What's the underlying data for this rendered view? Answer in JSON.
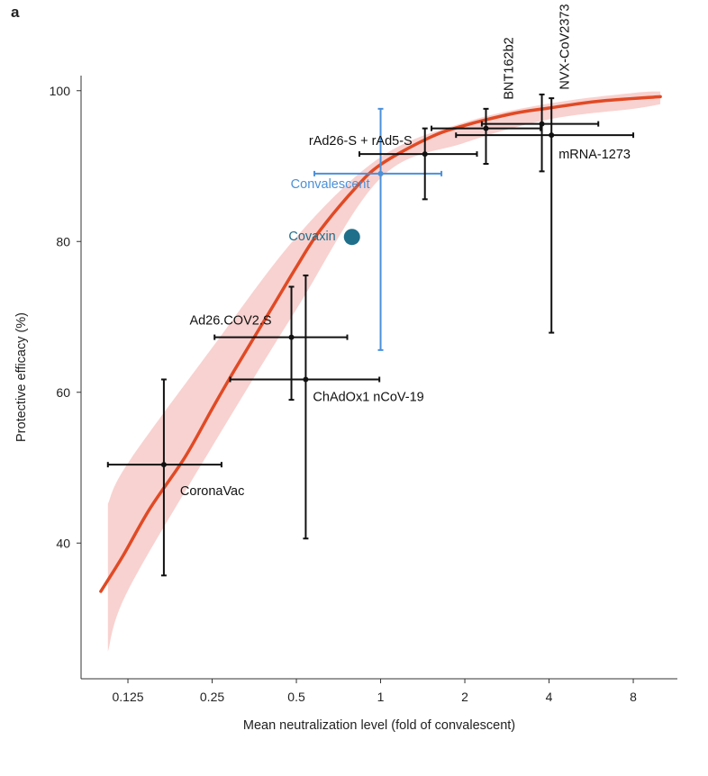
{
  "panel_label": "a",
  "chart_data": {
    "type": "scatter",
    "title": "",
    "xlabel": "Mean neutralization level (fold of convalescent)",
    "ylabel": "Protective efficacy (%)",
    "x_scale": "log2",
    "xlim": [
      0.085,
      11.5
    ],
    "ylim": [
      22,
      102
    ],
    "x_ticks": [
      {
        "value": 0.125,
        "label": "0.125"
      },
      {
        "value": 0.25,
        "label": "0.25"
      },
      {
        "value": 0.5,
        "label": "0.5"
      },
      {
        "value": 1,
        "label": "1"
      },
      {
        "value": 2,
        "label": "2"
      },
      {
        "value": 4,
        "label": "4"
      },
      {
        "value": 8,
        "label": "8"
      }
    ],
    "y_ticks": [
      {
        "value": 40,
        "label": "40"
      },
      {
        "value": 60,
        "label": "60"
      },
      {
        "value": 80,
        "label": "80"
      },
      {
        "value": 100,
        "label": "100"
      }
    ],
    "grid": false,
    "legend": "none",
    "colors": {
      "points": "#111111",
      "convalescent": "#4a90d9",
      "covaxin": "#1f6f8b",
      "fit": "#e04a25",
      "band": "#f6c3c0"
    },
    "points": [
      {
        "name": "CoronaVac",
        "x": 0.168,
        "y": 50.4,
        "x_lo": 0.106,
        "x_hi": 0.27,
        "y_lo": 35.7,
        "y_hi": 61.7,
        "color": "#111111",
        "label_pos": "right-below",
        "label_rotated": false
      },
      {
        "name": "Ad26.COV2.S",
        "x": 0.48,
        "y": 67.3,
        "x_lo": 0.255,
        "x_hi": 0.76,
        "y_lo": 59.0,
        "y_hi": 74.0,
        "color": "#111111",
        "label_pos": "left-above",
        "label_rotated": false
      },
      {
        "name": "ChAdOx1 nCoV-19",
        "x": 0.54,
        "y": 61.7,
        "x_lo": 0.29,
        "x_hi": 0.99,
        "y_lo": 40.6,
        "y_hi": 75.5,
        "color": "#111111",
        "label_pos": "right-below",
        "label_rotated": false
      },
      {
        "name": "Convalescent",
        "x": 1.0,
        "y": 89.0,
        "x_lo": 0.58,
        "x_hi": 1.65,
        "y_lo": 65.6,
        "y_hi": 97.6,
        "color": "#4a90d9",
        "label_pos": "left",
        "label_rotated": false
      },
      {
        "name": "Covaxin",
        "x": 0.79,
        "y": 80.6,
        "color": "#1f6f8b",
        "label_pos": "left",
        "label_rotated": false
      },
      {
        "name": "rAd26-S + rAd5-S",
        "x": 1.44,
        "y": 91.6,
        "x_lo": 0.84,
        "x_hi": 2.21,
        "y_lo": 85.6,
        "y_hi": 95.0,
        "color": "#111111",
        "label_pos": "left-above",
        "label_rotated": false
      },
      {
        "name": "BNT162b2",
        "x": 2.38,
        "y": 95.0,
        "x_lo": 1.52,
        "x_hi": 3.73,
        "y_lo": 90.3,
        "y_hi": 97.6,
        "color": "#111111",
        "label_pos": "above",
        "label_rotated": true
      },
      {
        "name": "NVX-CoV2373",
        "x": 3.77,
        "y": 95.6,
        "x_lo": 2.3,
        "x_hi": 6.0,
        "y_lo": 89.3,
        "y_hi": 99.5,
        "color": "#111111",
        "label_pos": "above",
        "label_rotated": true
      },
      {
        "name": "mRNA-1273",
        "x": 4.08,
        "y": 94.1,
        "x_lo": 1.86,
        "x_hi": 8.0,
        "y_lo": 67.9,
        "y_hi": 99.0,
        "color": "#111111",
        "label_pos": "right-below",
        "label_rotated": false
      }
    ],
    "fit_curve": {
      "name": "",
      "points": [
        [
          0.1,
          33.6
        ],
        [
          0.12,
          38.3
        ],
        [
          0.15,
          44.6
        ],
        [
          0.2,
          51.4
        ],
        [
          0.25,
          57.8
        ],
        [
          0.3,
          62.9
        ],
        [
          0.4,
          70.6
        ],
        [
          0.5,
          76.6
        ],
        [
          0.6,
          81.2
        ],
        [
          0.8,
          86.8
        ],
        [
          1.0,
          90.2
        ],
        [
          1.5,
          93.8
        ],
        [
          2.0,
          95.4
        ],
        [
          3.0,
          97.0
        ],
        [
          4.0,
          97.7
        ],
        [
          6.0,
          98.6
        ],
        [
          10.0,
          99.2
        ]
      ]
    },
    "confidence_band": {
      "upper": [
        [
          0.106,
          45.2
        ],
        [
          0.125,
          50.6
        ],
        [
          0.25,
          65.9
        ],
        [
          0.5,
          80.6
        ],
        [
          1.0,
          91.2
        ],
        [
          2.0,
          95.8
        ],
        [
          4.0,
          98.3
        ],
        [
          8.0,
          99.7
        ],
        [
          10.0,
          99.9
        ]
      ],
      "lower": [
        [
          0.106,
          25.6
        ],
        [
          0.125,
          33.7
        ],
        [
          0.25,
          52.8
        ],
        [
          0.5,
          71.0
        ],
        [
          1.0,
          88.4
        ],
        [
          2.0,
          93.1
        ],
        [
          4.0,
          96.2
        ],
        [
          8.0,
          97.6
        ],
        [
          10.0,
          98.2
        ]
      ]
    }
  }
}
